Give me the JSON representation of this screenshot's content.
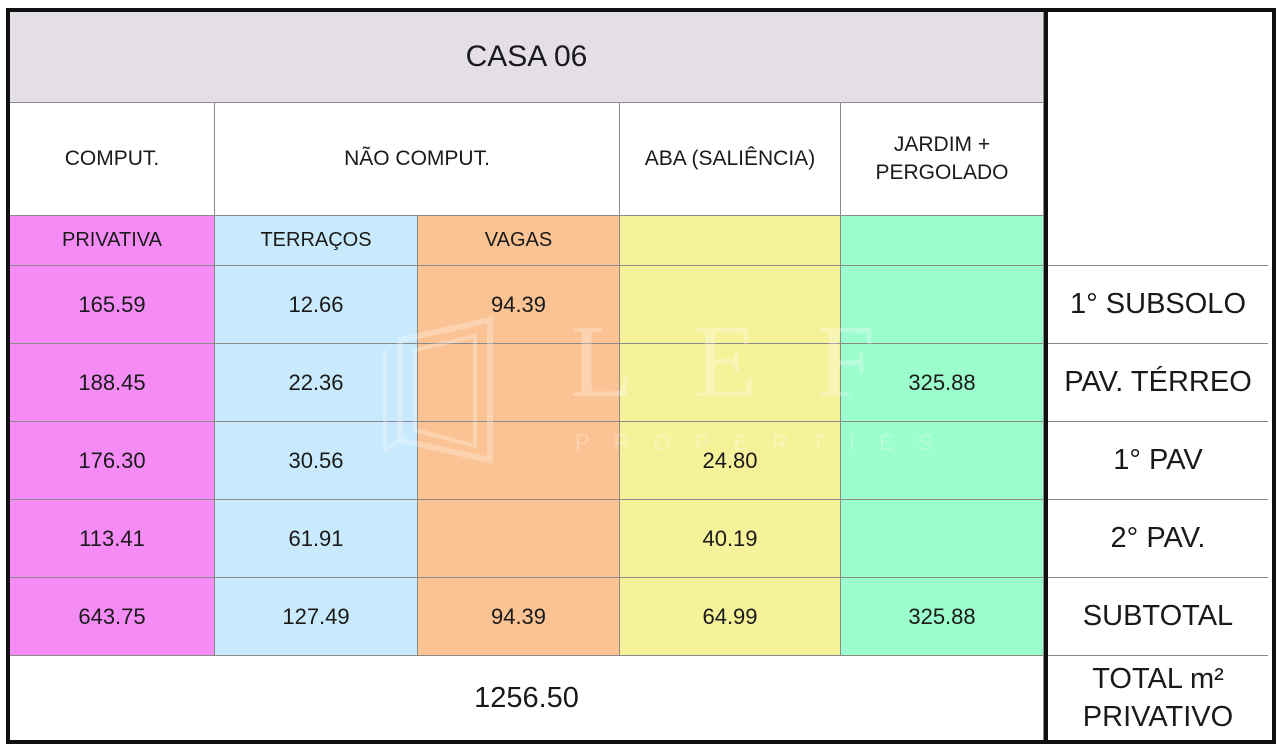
{
  "table": {
    "title": "CASA 06",
    "headers": {
      "comput": "COMPUT.",
      "nao_comput": "NÃO COMPUT.",
      "aba": "ABA (SALIÊNCIA)",
      "jardim_line1": "JARDIM +",
      "jardim_line2": "PERGOLADO"
    },
    "subheaders": {
      "privativa": "PRIVATIVA",
      "terracos": "TERRAÇOS",
      "vagas": "VAGAS"
    },
    "rows": [
      {
        "label": "1° SUBSOLO",
        "privativa": "165.59",
        "terracos": "12.66",
        "vagas": "94.39",
        "aba": "",
        "jardim": ""
      },
      {
        "label": "PAV. TÉRREO",
        "privativa": "188.45",
        "terracos": "22.36",
        "vagas": "",
        "aba": "",
        "jardim": "325.88"
      },
      {
        "label": "1° PAV",
        "privativa": "176.30",
        "terracos": "30.56",
        "vagas": "",
        "aba": "24.80",
        "jardim": ""
      },
      {
        "label": "2° PAV.",
        "privativa": "113.41",
        "terracos": "61.91",
        "vagas": "",
        "aba": "40.19",
        "jardim": ""
      },
      {
        "label": "SUBTOTAL",
        "privativa": "643.75",
        "terracos": "127.49",
        "vagas": "94.39",
        "aba": "64.99",
        "jardim": "325.88"
      }
    ],
    "total_value": "1256.50",
    "total_label_line1": "TOTAL m²",
    "total_label_line2": "PRIVATIVO"
  },
  "watermark": {
    "letters": "LEF",
    "subtitle": "PROPERTIES"
  },
  "colors": {
    "privativa": "#f58cf6",
    "terracos": "#c8eafc",
    "vagas": "#fbc393",
    "aba": "#f6f29a",
    "jardim": "#9cfdcd",
    "title_bg": "#e4dfe6"
  }
}
